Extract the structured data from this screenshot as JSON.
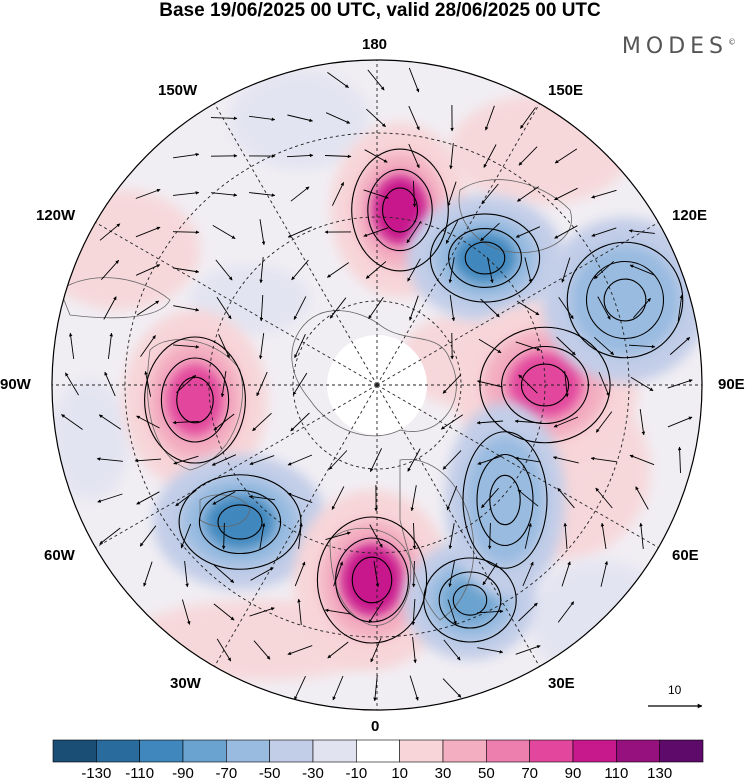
{
  "title": "Base 19/06/2025 00 UTC, valid 28/06/2025 00 UTC",
  "brand": "MODES",
  "brand_mark": "©",
  "longitude_labels": {
    "lon_180": "180",
    "lon_150e": "150E",
    "lon_120e": "120E",
    "lon_90e": "90E",
    "lon_60e": "60E",
    "lon_30e": "30E",
    "lon_0": "0",
    "lon_30w": "30W",
    "lon_60w": "60W",
    "lon_90w": "90W",
    "lon_120w": "120W",
    "lon_150w": "150W"
  },
  "reference_vector_label": "10",
  "colorbar": {
    "labels": [
      "-130",
      "-110",
      "-90",
      "-70",
      "-50",
      "-30",
      "-10",
      "10",
      "30",
      "50",
      "70",
      "90",
      "110",
      "130"
    ],
    "colors": [
      "#1a4e75",
      "#2a6b9e",
      "#3f87bd",
      "#6aa3cf",
      "#99bbe0",
      "#c2cde8",
      "#e2e3f1",
      "#ffffff",
      "#f7d5d8",
      "#f3aec1",
      "#ec7fae",
      "#e2479d",
      "#c8198c",
      "#96117e",
      "#5e0a6a"
    ]
  },
  "anomalies": [
    {
      "id": "h-north-pacific",
      "value": 95,
      "color": "#c8198c"
    },
    {
      "id": "l-east-siberia",
      "value": -80,
      "color": "#3f87bd"
    },
    {
      "id": "h-west-siberia",
      "value": 75,
      "color": "#e2479d"
    },
    {
      "id": "h-canada-east",
      "value": 70,
      "color": "#e2479d"
    },
    {
      "id": "l-north-atlantic",
      "value": -90,
      "color": "#3f87bd"
    },
    {
      "id": "h-western-europe",
      "value": 100,
      "color": "#c8198c"
    },
    {
      "id": "l-eastern-europe",
      "value": -65,
      "color": "#6aa3cf"
    },
    {
      "id": "l-central-asia",
      "value": -50,
      "color": "#99bbe0"
    },
    {
      "id": "l-north-russia",
      "value": -60,
      "color": "#99bbe0"
    }
  ]
}
